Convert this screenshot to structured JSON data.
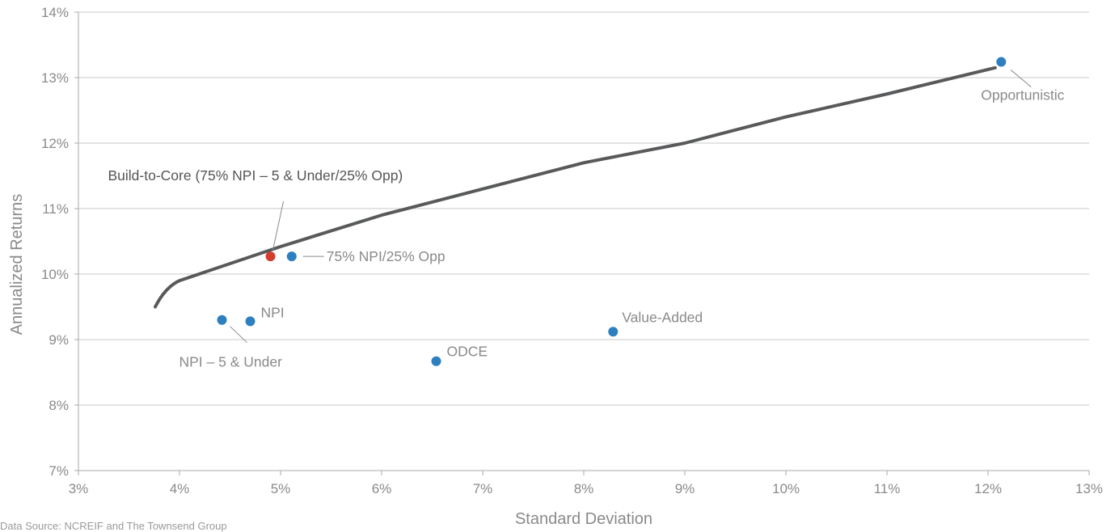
{
  "chart_data": {
    "type": "scatter",
    "title": "",
    "xlabel": "Standard Deviation",
    "ylabel": "Annualized Returns",
    "xlim": [
      3,
      13
    ],
    "ylim": [
      7,
      14
    ],
    "x_ticks": [
      "3%",
      "4%",
      "5%",
      "6%",
      "7%",
      "8%",
      "9%",
      "10%",
      "11%",
      "12%",
      "13%"
    ],
    "y_ticks": [
      "7%",
      "8%",
      "9%",
      "10%",
      "11%",
      "12%",
      "13%",
      "14%"
    ],
    "grid": "horizontal",
    "frontier": {
      "color": "#58595b",
      "x": [
        3.76,
        3.8,
        3.9,
        4.0,
        5.0,
        6.0,
        7.0,
        8.0,
        9.0,
        10.0,
        11.0,
        12.07
      ],
      "y": [
        9.5,
        9.7,
        9.84,
        9.9,
        10.42,
        10.9,
        11.3,
        11.7,
        12.0,
        12.4,
        12.75,
        13.15
      ]
    },
    "points": [
      {
        "label": "Opportunistic",
        "x": 12.13,
        "y": 13.24,
        "color": "#2e7fbf",
        "label_color": "#8a8a8a"
      },
      {
        "label": "75% NPI/25% Opp",
        "x": 5.11,
        "y": 10.27,
        "color": "#2e7fbf",
        "label_color": "#8a8a8a"
      },
      {
        "label": "Build-to-Core (75% NPI – 5 & Under/25% Opp)",
        "x": 4.9,
        "y": 10.27,
        "color": "#d33c2f",
        "label_color": "#555555"
      },
      {
        "label": "NPI",
        "x": 4.7,
        "y": 9.28,
        "color": "#2e7fbf",
        "label_color": "#8a8a8a"
      },
      {
        "label": "NPI – 5 & Under",
        "x": 4.42,
        "y": 9.3,
        "color": "#2e7fbf",
        "label_color": "#8a8a8a"
      },
      {
        "label": "ODCE",
        "x": 6.54,
        "y": 8.67,
        "color": "#2e7fbf",
        "label_color": "#8a8a8a"
      },
      {
        "label": "Value-Added",
        "x": 8.29,
        "y": 9.12,
        "color": "#2e7fbf",
        "label_color": "#8a8a8a"
      }
    ]
  },
  "source_note": "Data Source: NCREIF and The Townsend Group"
}
